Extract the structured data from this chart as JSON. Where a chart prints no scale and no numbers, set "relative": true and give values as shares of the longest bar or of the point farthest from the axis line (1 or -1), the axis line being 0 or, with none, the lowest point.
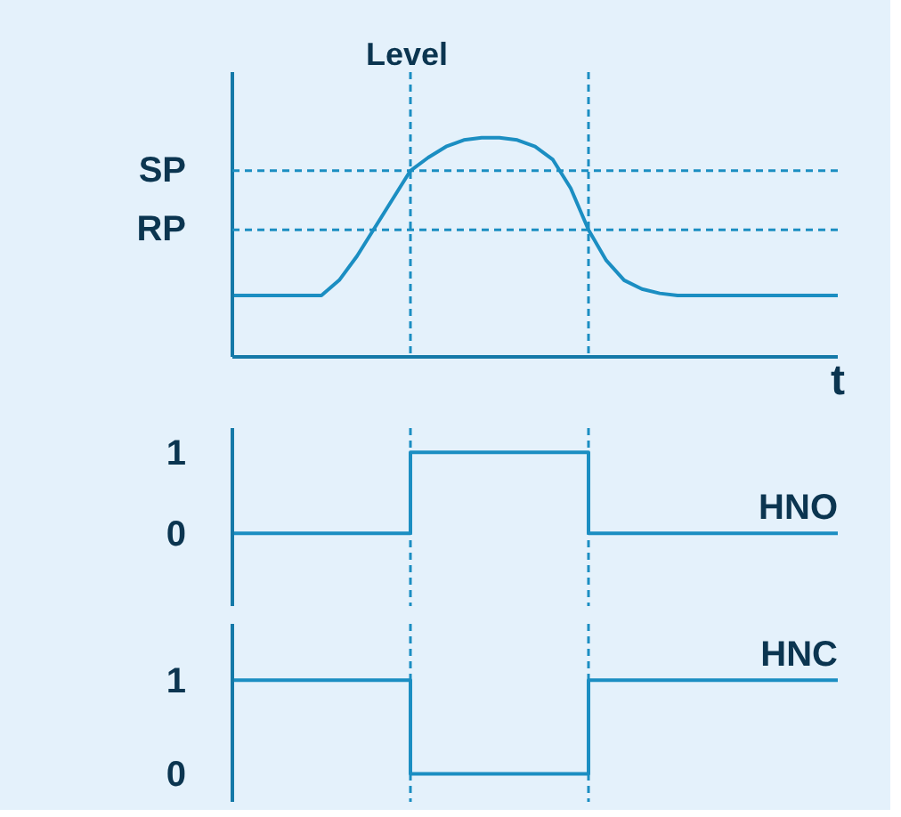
{
  "chart_data": [
    {
      "type": "line",
      "ylabel": "Level",
      "xlabel": "t",
      "categories": [
        null,
        null,
        null,
        null,
        null,
        null,
        null,
        null,
        null,
        null,
        null,
        null,
        null,
        null,
        null,
        null,
        null,
        null,
        null,
        null,
        null,
        null,
        null,
        null,
        null,
        null,
        null,
        null,
        null,
        null,
        null,
        null,
        null,
        null,
        null
      ],
      "relative": true,
      "series": [
        {
          "color": "#1b8ec2",
          "values": [
            0.28,
            0.28,
            0.28,
            0.28,
            0.28,
            0.28,
            0.35,
            0.46,
            0.59,
            0.72,
            0.85,
            0.91,
            0.96,
            0.99,
            1,
            1,
            0.99,
            0.96,
            0.9,
            0.77,
            0.58,
            0.44,
            0.35,
            0.31,
            0.29,
            0.28,
            0.28,
            0.28,
            0.28,
            0.28,
            0.28,
            0.28,
            0.28,
            0.28,
            0.28
          ]
        }
      ],
      "ref_lines": [
        {
          "axis": "y",
          "value": 0.85,
          "label": "SP",
          "line_style": "dashed",
          "color": "#1b8ec2"
        },
        {
          "axis": "y",
          "value": 0.58,
          "label": "RP",
          "line_style": "dashed",
          "color": "#1b8ec2"
        }
      ]
    },
    {
      "type": "step",
      "categories": [
        null,
        null,
        null,
        null,
        null,
        null,
        null,
        null,
        null,
        null,
        null,
        null,
        null,
        null,
        null,
        null,
        null,
        null,
        null,
        null,
        null,
        null,
        null,
        null,
        null,
        null,
        null,
        null,
        null,
        null,
        null,
        null,
        null,
        null,
        null
      ],
      "ylim": [
        -0.9,
        1.3
      ],
      "yticks": [
        0,
        1
      ],
      "series": [
        {
          "name": "HNO",
          "color": "#1b8ec2",
          "values": [
            0,
            0,
            0,
            0,
            0,
            0,
            0,
            0,
            0,
            0,
            1,
            1,
            1,
            1,
            1,
            1,
            1,
            1,
            1,
            1,
            0,
            0,
            0,
            0,
            0,
            0,
            0,
            0,
            0,
            0,
            0,
            0,
            0,
            0,
            0
          ]
        }
      ]
    },
    {
      "type": "step",
      "categories": [
        null,
        null,
        null,
        null,
        null,
        null,
        null,
        null,
        null,
        null,
        null,
        null,
        null,
        null,
        null,
        null,
        null,
        null,
        null,
        null,
        null,
        null,
        null,
        null,
        null,
        null,
        null,
        null,
        null,
        null,
        null,
        null,
        null,
        null,
        null
      ],
      "ylim": [
        -0.3,
        1.6
      ],
      "yticks": [
        0,
        1
      ],
      "series": [
        {
          "name": "HNC",
          "color": "#1b8ec2",
          "values": [
            1,
            1,
            1,
            1,
            1,
            1,
            1,
            1,
            1,
            1,
            0,
            0,
            0,
            0,
            0,
            0,
            0,
            0,
            0,
            0,
            1,
            1,
            1,
            1,
            1,
            1,
            1,
            1,
            1,
            1,
            1,
            1,
            1,
            1,
            1
          ]
        }
      ]
    }
  ]
}
